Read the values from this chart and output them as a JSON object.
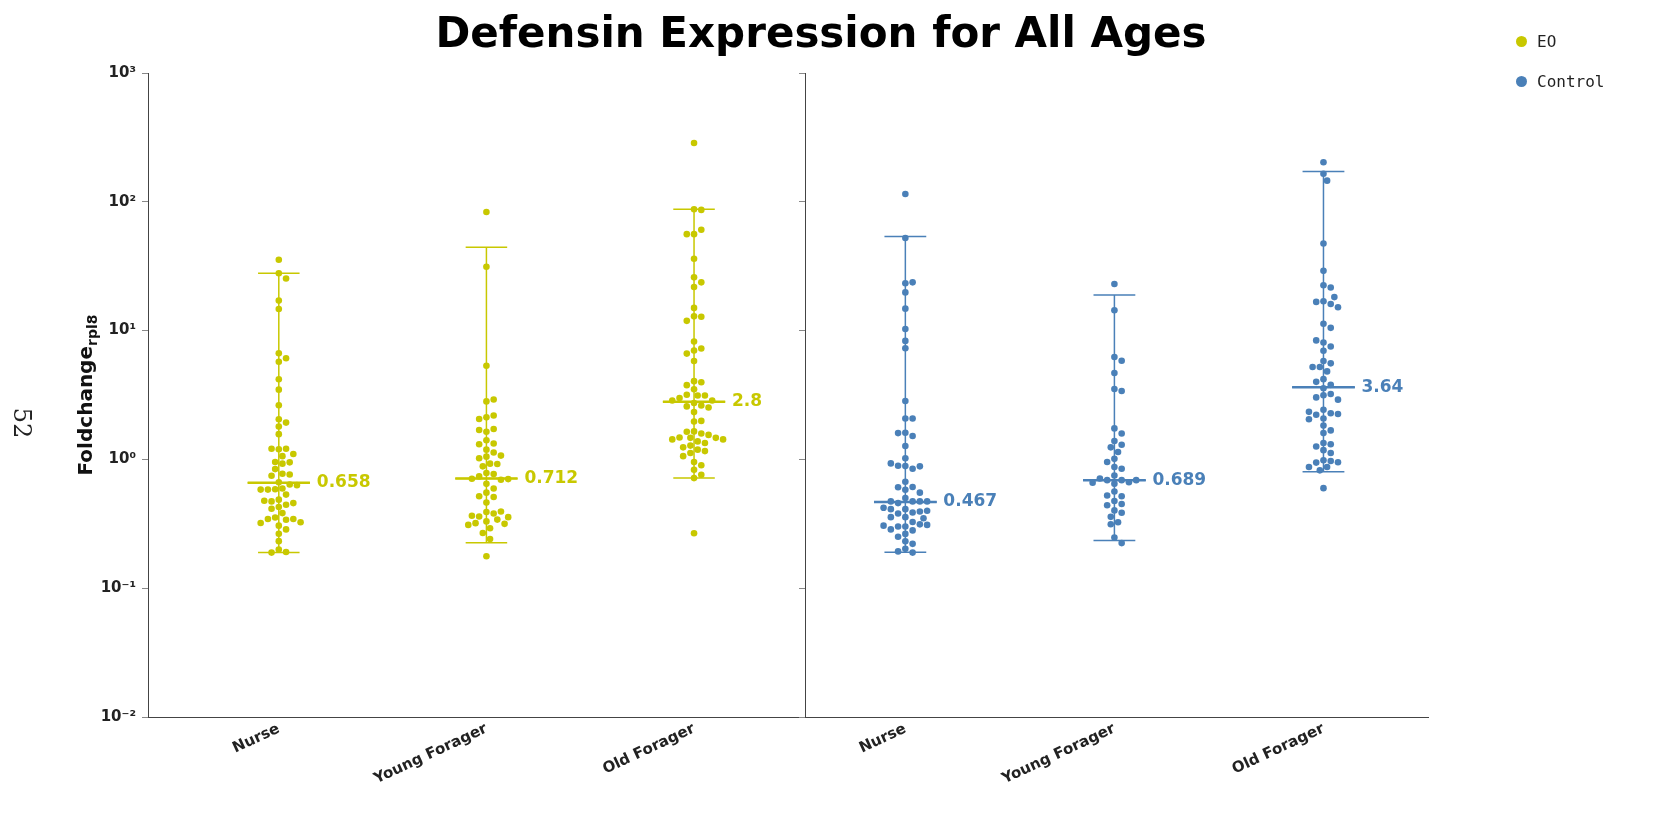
{
  "chart_data": [
    {
      "type": "scatter",
      "title": "Defensin Expression for All Ages",
      "ylabel": "Foldchange$_{rpl8}$",
      "annotations": [
        "52",
        {
          "text": "0.658",
          "x": "Nurse",
          "y": 0.658
        },
        {
          "text": "0.712",
          "x": "Young Forager",
          "y": 0.712
        },
        {
          "text": "2.8",
          "x": "Old Forager",
          "y": 2.8
        }
      ],
      "log": "y",
      "grid": false,
      "legend": "top right",
      "marker": "circle",
      "categories": [
        "Nurse",
        "Young Forager",
        "Old Forager"
      ],
      "ylim": [
        0.01,
        1000
      ],
      "yticks": [
        {
          "value": 0.01,
          "label": "10⁻²"
        },
        {
          "value": 0.1,
          "label": "10⁻¹"
        },
        {
          "value": 1,
          "label": "10⁰"
        },
        {
          "value": 10,
          "label": "10¹"
        },
        {
          "value": 100,
          "label": "10²"
        },
        {
          "value": 1000,
          "label": "10³"
        }
      ],
      "series": [
        {
          "name": "EO",
          "color": "#c8c800",
          "x": [
            "Nurse",
            "Nurse",
            "Nurse",
            "Nurse",
            "Nurse",
            "Nurse",
            "Nurse",
            "Nurse",
            "Nurse",
            "Nurse",
            "Nurse",
            "Nurse",
            "Nurse",
            "Nurse",
            "Nurse",
            "Nurse",
            "Nurse",
            "Nurse",
            "Nurse",
            "Nurse",
            "Nurse",
            "Nurse",
            "Nurse",
            "Nurse",
            "Nurse",
            "Nurse",
            "Nurse",
            "Nurse",
            "Nurse",
            "Nurse",
            "Nurse",
            "Nurse",
            "Nurse",
            "Nurse",
            "Nurse",
            "Nurse",
            "Nurse",
            "Nurse",
            "Nurse",
            "Nurse",
            "Nurse",
            "Nurse",
            "Nurse",
            "Nurse",
            "Nurse",
            "Nurse",
            "Nurse",
            "Nurse",
            "Nurse",
            "Nurse",
            "Nurse",
            "Nurse",
            "Nurse",
            "Nurse",
            "Nurse",
            "Nurse",
            "Young Forager",
            "Young Forager",
            "Young Forager",
            "Young Forager",
            "Young Forager",
            "Young Forager",
            "Young Forager",
            "Young Forager",
            "Young Forager",
            "Young Forager",
            "Young Forager",
            "Young Forager",
            "Young Forager",
            "Young Forager",
            "Young Forager",
            "Young Forager",
            "Young Forager",
            "Young Forager",
            "Young Forager",
            "Young Forager",
            "Young Forager",
            "Young Forager",
            "Young Forager",
            "Young Forager",
            "Young Forager",
            "Young Forager",
            "Young Forager",
            "Young Forager",
            "Young Forager",
            "Young Forager",
            "Young Forager",
            "Young Forager",
            "Young Forager",
            "Young Forager",
            "Young Forager",
            "Young Forager",
            "Young Forager",
            "Young Forager",
            "Young Forager",
            "Young Forager",
            "Young Forager",
            "Young Forager",
            "Young Forager",
            "Young Forager",
            "Young Forager",
            "Young Forager",
            "Young Forager",
            "Young Forager",
            "Young Forager",
            "Old Forager",
            "Old Forager",
            "Old Forager",
            "Old Forager",
            "Old Forager",
            "Old Forager",
            "Old Forager",
            "Old Forager",
            "Old Forager",
            "Old Forager",
            "Old Forager",
            "Old Forager",
            "Old Forager",
            "Old Forager",
            "Old Forager",
            "Old Forager",
            "Old Forager",
            "Old Forager",
            "Old Forager",
            "Old Forager",
            "Old Forager",
            "Old Forager",
            "Old Forager",
            "Old Forager",
            "Old Forager",
            "Old Forager",
            "Old Forager",
            "Old Forager",
            "Old Forager",
            "Old Forager",
            "Old Forager",
            "Old Forager",
            "Old Forager",
            "Old Forager",
            "Old Forager",
            "Old Forager",
            "Old Forager",
            "Old Forager",
            "Old Forager",
            "Old Forager",
            "Old Forager",
            "Old Forager",
            "Old Forager",
            "Old Forager",
            "Old Forager",
            "Old Forager",
            "Old Forager",
            "Old Forager",
            "Old Forager",
            "Old Forager",
            "Old Forager",
            "Old Forager",
            "Old Forager",
            "Old Forager",
            "Old Forager",
            "Old Forager",
            "Old Forager",
            "Old Forager",
            "Old Forager"
          ],
          "values": [
            35.5,
            27.9,
            25.4,
            17.1,
            14.7,
            6.67,
            6.1,
            5.73,
            4.19,
            3.48,
            2.63,
            2.05,
            1.93,
            1.8,
            1.57,
            1.2,
            1.21,
            1.21,
            1.1,
            1.06,
            0.955,
            0.927,
            0.949,
            0.841,
            0.774,
            0.764,
            0.746,
            0.665,
            0.594,
            0.586,
            0.638,
            0.583,
            0.631,
            0.533,
            0.583,
            0.487,
            0.472,
            0.445,
            0.458,
            0.478,
            0.427,
            0.414,
            0.383,
            0.354,
            0.34,
            0.345,
            0.345,
            0.321,
            0.325,
            0.306,
            0.286,
            0.265,
            0.232,
            0.2,
            0.191,
            0.189,
            83.4,
            31.3,
            5.34,
            2.82,
            2.92,
            2.12,
            2.19,
            2.06,
            1.64,
            1.72,
            1.69,
            1.41,
            1.33,
            1.31,
            1.19,
            1.13,
            1.05,
            1.02,
            1.07,
            0.927,
            0.883,
            0.921,
            0.783,
            0.769,
            0.738,
            0.695,
            0.707,
            0.703,
            0.646,
            0.594,
            0.552,
            0.511,
            0.517,
            0.462,
            0.39,
            0.38,
            0.36,
            0.394,
            0.365,
            0.356,
            0.33,
            0.341,
            0.32,
            0.316,
            0.31,
            0.292,
            0.268,
            0.241,
            0.177,
            286,
            87.5,
            86.5,
            56.1,
            60.7,
            56.1,
            36.1,
            25.9,
            23.7,
            21.8,
            15,
            12.9,
            12.8,
            11.9,
            8.22,
            7,
            7.26,
            6.63,
            5.8,
            4.05,
            3.97,
            3.77,
            3.5,
            3.13,
            3.18,
            3.13,
            3,
            2.87,
            2.87,
            2.74,
            2.62,
            2.58,
            2.53,
            2.33,
            1.97,
            1.99,
            1.65,
            1.59,
            1.64,
            1.55,
            1.48,
            1.47,
            1.47,
            1.43,
            1.43,
            1.38,
            1.34,
            1.28,
            1.24,
            1.19,
            1.16,
            1.12,
            1.06,
            0.955,
            0.9,
            0.832,
            0.76,
            0.716,
            0.267
          ]
        },
        {
          "type": "box",
          "color": "#c8c800",
          "boxes": [
            {
              "low": 0.189,
              "q1": 0.658,
              "median": 0.658,
              "q3": 0.658,
              "high": 27.9
            },
            {
              "low": 0.225,
              "q1": 0.712,
              "median": 0.712,
              "q3": 0.712,
              "high": 44.3
            },
            {
              "low": 0.716,
              "q1": 2.8,
              "median": 2.8,
              "q3": 2.8,
              "high": 87.5
            }
          ]
        }
      ]
    },
    {
      "type": "scatter",
      "tick_labels": "x",
      "annotations": [
        {
          "text": "0.467",
          "x": "Nurse",
          "y": 0.467
        },
        {
          "text": "0.689",
          "x": "Young Forager",
          "y": 0.689
        },
        {
          "text": "3.64",
          "x": "Old Forager",
          "y": 3.64
        }
      ],
      "log": "y",
      "grid": false,
      "legend": "top right",
      "marker": "circle",
      "categories": [
        "Nurse",
        "Young Forager",
        "Old Forager"
      ],
      "ylim": [
        0.01,
        1000
      ],
      "yticks": [
        {
          "value": 0.01,
          "label": null
        },
        {
          "value": 0.1,
          "label": null
        },
        {
          "value": 1,
          "label": null
        },
        {
          "value": 10,
          "label": null
        },
        {
          "value": 100,
          "label": null
        },
        {
          "value": 1000,
          "label": null
        }
      ],
      "series": [
        {
          "name": "Control",
          "color": "#4a80b8",
          "x": [
            "Nurse",
            "Nurse",
            "Nurse",
            "Nurse",
            "Nurse",
            "Nurse",
            "Nurse",
            "Nurse",
            "Nurse",
            "Nurse",
            "Nurse",
            "Nurse",
            "Nurse",
            "Nurse",
            "Nurse",
            "Nurse",
            "Nurse",
            "Nurse",
            "Nurse",
            "Nurse",
            "Nurse",
            "Nurse",
            "Nurse",
            "Nurse",
            "Nurse",
            "Nurse",
            "Nurse",
            "Nurse",
            "Nurse",
            "Nurse",
            "Nurse",
            "Nurse",
            "Nurse",
            "Nurse",
            "Nurse",
            "Nurse",
            "Nurse",
            "Nurse",
            "Nurse",
            "Nurse",
            "Nurse",
            "Nurse",
            "Nurse",
            "Nurse",
            "Nurse",
            "Nurse",
            "Nurse",
            "Nurse",
            "Nurse",
            "Nurse",
            "Nurse",
            "Nurse",
            "Nurse",
            "Nurse",
            "Nurse",
            "Nurse",
            "Nurse",
            "Nurse",
            "Young Forager",
            "Young Forager",
            "Young Forager",
            "Young Forager",
            "Young Forager",
            "Young Forager",
            "Young Forager",
            "Young Forager",
            "Young Forager",
            "Young Forager",
            "Young Forager",
            "Young Forager",
            "Young Forager",
            "Young Forager",
            "Young Forager",
            "Young Forager",
            "Young Forager",
            "Young Forager",
            "Young Forager",
            "Young Forager",
            "Young Forager",
            "Young Forager",
            "Young Forager",
            "Young Forager",
            "Young Forager",
            "Young Forager",
            "Young Forager",
            "Young Forager",
            "Young Forager",
            "Young Forager",
            "Young Forager",
            "Young Forager",
            "Young Forager",
            "Young Forager",
            "Young Forager",
            "Young Forager",
            "Young Forager",
            "Young Forager",
            "Old Forager",
            "Old Forager",
            "Old Forager",
            "Old Forager",
            "Old Forager",
            "Old Forager",
            "Old Forager",
            "Old Forager",
            "Old Forager",
            "Old Forager",
            "Old Forager",
            "Old Forager",
            "Old Forager",
            "Old Forager",
            "Old Forager",
            "Old Forager",
            "Old Forager",
            "Old Forager",
            "Old Forager",
            "Old Forager",
            "Old Forager",
            "Old Forager",
            "Old Forager",
            "Old Forager",
            "Old Forager",
            "Old Forager",
            "Old Forager",
            "Old Forager",
            "Old Forager",
            "Old Forager",
            "Old Forager",
            "Old Forager",
            "Old Forager",
            "Old Forager",
            "Old Forager",
            "Old Forager",
            "Old Forager",
            "Old Forager",
            "Old Forager",
            "Old Forager",
            "Old Forager",
            "Old Forager",
            "Old Forager",
            "Old Forager",
            "Old Forager",
            "Old Forager",
            "Old Forager",
            "Old Forager",
            "Old Forager",
            "Old Forager",
            "Old Forager",
            "Old Forager",
            "Old Forager",
            "Old Forager"
          ],
          "values": [
            115,
            52.4,
            23.3,
            23.7,
            19.8,
            14.8,
            10.3,
            8.32,
            7.29,
            2.84,
            2.08,
            2.08,
            1.61,
            1.52,
            1.6,
            1.27,
            1.02,
            0.887,
            0.845,
            0.893,
            0.883,
            0.931,
            0.67,
            0.582,
            0.611,
            0.608,
            0.552,
            0.501,
            0.472,
            0.458,
            0.472,
            0.472,
            0.472,
            0.411,
            0.387,
            0.38,
            0.394,
            0.411,
            0.399,
            0.421,
            0.356,
            0.356,
            0.349,
            0.327,
            0.301,
            0.301,
            0.313,
            0.281,
            0.286,
            0.31,
            0.306,
            0.264,
            0.251,
            0.231,
            0.221,
            0.202,
            0.189,
            0.193,
            23,
            14.4,
            6.24,
            5.84,
            4.68,
            3.52,
            3.4,
            1.74,
            1.59,
            1.39,
            1.3,
            1.24,
            1.14,
            1.01,
            0.873,
            0.847,
            0.955,
            0.75,
            0.69,
            0.69,
            0.665,
            0.711,
            0.646,
            0.69,
            0.658,
            0.563,
            0.517,
            0.524,
            0.475,
            0.45,
            0.44,
            0.402,
            0.385,
            0.358,
            0.325,
            0.314,
            0.247,
            0.224,
            203,
            165,
            146,
            47.4,
            29.1,
            22.5,
            21.6,
            16.9,
            16.1,
            16.7,
            18.2,
            15.2,
            11.3,
            10.5,
            8.09,
            7.53,
            8.39,
            6.97,
            5.81,
            5.57,
            5.21,
            5.21,
            4.82,
            4.2,
            3.79,
            4,
            3.57,
            3.15,
            3.22,
            3.03,
            2.91,
            2.43,
            2.28,
            2.22,
            2.25,
            2.34,
            2.08,
            2.05,
            1.83,
            1.68,
            1.6,
            1.34,
            1.31,
            1.26,
            1.18,
            1.12,
            0.986,
            0.973,
            0.944,
            0.95,
            0.873,
            0.873,
            0.822,
            0.598
          ]
        },
        {
          "type": "box",
          "color": "#4a80b8",
          "boxes": [
            {
              "low": 0.19,
              "q1": 0.467,
              "median": 0.467,
              "q3": 0.467,
              "high": 53.7
            },
            {
              "low": 0.235,
              "q1": 0.689,
              "median": 0.689,
              "q3": 0.689,
              "high": 18.9
            },
            {
              "low": 0.803,
              "q1": 3.64,
              "median": 3.64,
              "q3": 3.64,
              "high": 172
            }
          ]
        }
      ]
    }
  ]
}
